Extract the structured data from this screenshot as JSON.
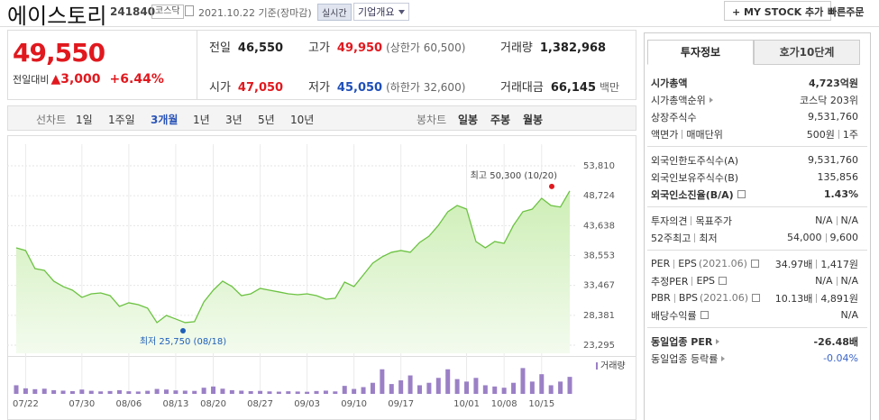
{
  "header": {
    "title": "에이스토리",
    "code": "241840",
    "market": "코스닥",
    "date": "2021.10.22 기준(장마감)",
    "realtime": "실시간",
    "company": "기업개요",
    "my_stock": "+ MY STOCK 추가",
    "quick_order": "빠른주문"
  },
  "quote": {
    "price": "49,550",
    "change_label": "전일대비",
    "change": "▲3,000",
    "change_rate": "+6.44%",
    "stats": [
      {
        "label": "전일",
        "value": "46,550"
      },
      {
        "label": "고가",
        "value": "49,950",
        "note": "(상한가 60,500)",
        "color": "#e0191f"
      },
      {
        "label": "거래량",
        "value": "1,382,968"
      },
      {
        "label": "시가",
        "value": "47,050",
        "color": "#e0191f"
      },
      {
        "label": "저가",
        "value": "45,050",
        "note": "(하한가 32,600)",
        "color": "#1f4fb8"
      },
      {
        "label": "거래대금",
        "value": "66,145",
        "note": "백만"
      }
    ]
  },
  "toolbar": {
    "line_label": "선차트",
    "periods": [
      "1일",
      "1주일",
      "3개월",
      "1년",
      "3년",
      "5년",
      "10년"
    ],
    "active_period": 2,
    "candle_label": "봉차트",
    "candles": [
      "일봉",
      "주봉",
      "월봉"
    ]
  },
  "price_chart": {
    "type": "line",
    "color": "#6cc242",
    "categories": [
      null,
      "07/22",
      null,
      null,
      null,
      null,
      null,
      "07/30",
      null,
      null,
      null,
      null,
      "08/06",
      null,
      null,
      null,
      null,
      "08/13",
      null,
      null,
      null,
      "08/20",
      null,
      null,
      null,
      null,
      "08/27",
      null,
      null,
      null,
      null,
      "09/03",
      null,
      null,
      null,
      null,
      "09/10",
      null,
      null,
      null,
      null,
      "09/17",
      null,
      null,
      null,
      null,
      null,
      null,
      "10/01",
      null,
      null,
      null,
      "10/08",
      null,
      null,
      null,
      "10/15",
      null,
      null,
      null
    ],
    "values": [
      39860,
      39400,
      36330,
      36030,
      34190,
      33270,
      32650,
      31430,
      32040,
      32190,
      31730,
      29900,
      30510,
      30200,
      29590,
      27130,
      28360,
      27750,
      27140,
      27290,
      30660,
      32650,
      34190,
      33270,
      31730,
      32040,
      32960,
      32650,
      32350,
      32040,
      31880,
      32040,
      31730,
      31120,
      31280,
      34030,
      33270,
      35260,
      37250,
      38330,
      39100,
      39400,
      39100,
      40780,
      41850,
      43690,
      46000,
      47070,
      46450,
      40930,
      39860,
      40930,
      40620,
      43690,
      46000,
      46450,
      48290,
      47070,
      46800,
      49550
    ],
    "ylim": [
      23295,
      53810
    ],
    "yticks": [
      {
        "value": 53810,
        "label": "53,810"
      },
      {
        "value": 48724,
        "label": "48,724"
      },
      {
        "value": 43638,
        "label": "43,638"
      },
      {
        "value": 38553,
        "label": "38,553"
      },
      {
        "value": 33467,
        "label": "33,467"
      },
      {
        "value": 28381,
        "label": "28,381"
      },
      {
        "value": 23295,
        "label": "23,295"
      }
    ],
    "grid": true,
    "high": {
      "text": "최고 50,300 (10/20)",
      "value": 50300,
      "color": "#e0191f"
    },
    "low": {
      "text": "최저 25,750 (08/18)",
      "value": 25750,
      "color": "#1f5fb8"
    },
    "volume_label": "거래량",
    "volume_color": "#9b80c6",
    "volume_ylim": [
      0,
      2200000
    ],
    "volume": [
      700000,
      450000,
      380000,
      420000,
      300000,
      260000,
      220000,
      350000,
      250000,
      200000,
      230000,
      300000,
      210000,
      190000,
      250000,
      400000,
      350000,
      280000,
      260000,
      240000,
      500000,
      600000,
      420000,
      300000,
      260000,
      220000,
      240000,
      200000,
      180000,
      210000,
      190000,
      170000,
      230000,
      260000,
      200000,
      650000,
      400000,
      550000,
      900000,
      2000000,
      800000,
      1100000,
      1500000,
      700000,
      900000,
      1300000,
      2000000,
      1200000,
      1000000,
      1300000,
      700000,
      600000,
      500000,
      900000,
      2100000,
      1000000,
      1600000,
      700000,
      1000000,
      1382968
    ]
  },
  "info": {
    "tabs": [
      "투자정보",
      "호가10단계"
    ],
    "active_tab": 0,
    "sections": [
      {
        "rows": [
          {
            "labels": [
              "시가총액"
            ],
            "values": [
              "4,723억원"
            ],
            "strong": true
          },
          {
            "labels": [
              "시가총액순위"
            ],
            "link": true,
            "values": [
              "코스닥 203위"
            ]
          },
          {
            "labels": [
              "상장주식수"
            ],
            "values": [
              "9,531,760"
            ]
          },
          {
            "labels": [
              "액면가",
              "매매단위"
            ],
            "values": [
              "500원",
              "1주"
            ]
          }
        ]
      },
      {
        "rows": [
          {
            "labels": [
              "외국인한도주식수(A)"
            ],
            "values": [
              "9,531,760"
            ]
          },
          {
            "labels": [
              "외국인보유주식수(B)"
            ],
            "values": [
              "135,856"
            ]
          },
          {
            "labels": [
              "외국인소진율(B/A)"
            ],
            "help": true,
            "values": [
              "1.43%"
            ],
            "strong": true
          }
        ]
      },
      {
        "rows": [
          {
            "labels": [
              "투자의견",
              "목표주가"
            ],
            "values": [
              "N/A",
              "N/A"
            ]
          },
          {
            "labels": [
              "52주최고",
              "최저"
            ],
            "values": [
              "54,000",
              "9,600"
            ]
          }
        ]
      },
      {
        "rows": [
          {
            "labels": [
              "PER",
              "EPS"
            ],
            "note": "(2021.06)",
            "help": true,
            "values": [
              "34.97배",
              "1,417원"
            ]
          },
          {
            "labels": [
              "추정PER",
              "EPS"
            ],
            "help": true,
            "values": [
              "N/A",
              "N/A"
            ]
          },
          {
            "labels": [
              "PBR",
              "BPS"
            ],
            "note": "(2021.06)",
            "help": true,
            "values": [
              "10.13배",
              "4,891원"
            ]
          },
          {
            "labels": [
              "배당수익률"
            ],
            "help": true,
            "values": [
              "N/A"
            ]
          }
        ]
      },
      {
        "rows": [
          {
            "labels": [
              "동일업종 PER"
            ],
            "link": true,
            "values": [
              "-26.48배"
            ],
            "strong": true
          },
          {
            "labels": [
              "동일업종 등락률"
            ],
            "link": true,
            "values": [
              "-0.04%"
            ],
            "color": "#3a64c8"
          }
        ]
      }
    ]
  }
}
